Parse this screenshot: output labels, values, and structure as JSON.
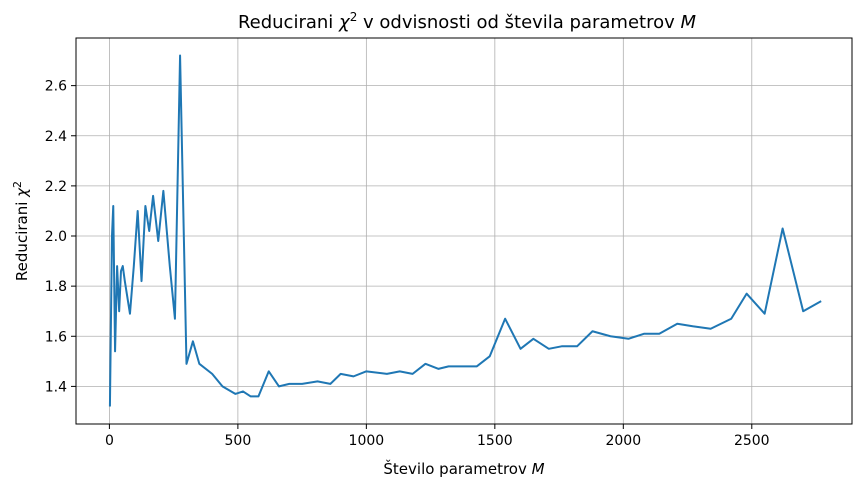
{
  "chart_data": {
    "type": "line",
    "title_main": "Reducirani ",
    "title_sym": "χ",
    "title_sup": "2",
    "title_rest": " v odvisnosti od števila parametrov ",
    "title_var": "M",
    "xlabel_main": "Število parametrov ",
    "xlabel_var": "M",
    "ylabel_main": "Reducirani ",
    "ylabel_sym": "χ",
    "ylabel_sup": "2",
    "xlim": [
      -130,
      2890
    ],
    "ylim": [
      1.25,
      2.79
    ],
    "xticks": [
      0,
      500,
      1000,
      1500,
      2000,
      2500
    ],
    "yticks": [
      1.4,
      1.6,
      1.8,
      2.0,
      2.2,
      2.4,
      2.6
    ],
    "grid": true,
    "line_color": "#1f77b4",
    "series": [
      {
        "x": [
          2,
          10,
          15,
          22,
          30,
          38,
          45,
          52,
          60,
          80,
          95,
          110,
          125,
          140,
          155,
          170,
          190,
          210,
          235,
          255,
          275,
          300,
          325,
          350,
          400,
          440,
          490,
          520,
          550,
          580,
          620,
          660,
          700,
          750,
          810,
          860,
          900,
          950,
          1000,
          1080,
          1130,
          1180,
          1230,
          1280,
          1320,
          1380,
          1430,
          1480,
          1540,
          1600,
          1650,
          1710,
          1760,
          1820,
          1880,
          1950,
          2020,
          2080,
          2140,
          2210,
          2270,
          2340,
          2420,
          2480,
          2550,
          2620,
          2700,
          2770
        ],
        "y": [
          1.32,
          2.0,
          2.12,
          1.54,
          1.88,
          1.7,
          1.86,
          1.88,
          1.82,
          1.69,
          1.88,
          2.1,
          1.82,
          2.12,
          2.02,
          2.16,
          1.98,
          2.18,
          1.88,
          1.67,
          2.72,
          1.49,
          1.58,
          1.49,
          1.45,
          1.4,
          1.37,
          1.38,
          1.36,
          1.36,
          1.46,
          1.4,
          1.41,
          1.41,
          1.42,
          1.41,
          1.45,
          1.44,
          1.46,
          1.45,
          1.46,
          1.45,
          1.49,
          1.47,
          1.48,
          1.48,
          1.48,
          1.52,
          1.67,
          1.55,
          1.59,
          1.55,
          1.56,
          1.56,
          1.62,
          1.6,
          1.59,
          1.61,
          1.61,
          1.65,
          1.64,
          1.63,
          1.67,
          1.77,
          1.69,
          2.03,
          1.7,
          1.74
        ]
      }
    ]
  }
}
